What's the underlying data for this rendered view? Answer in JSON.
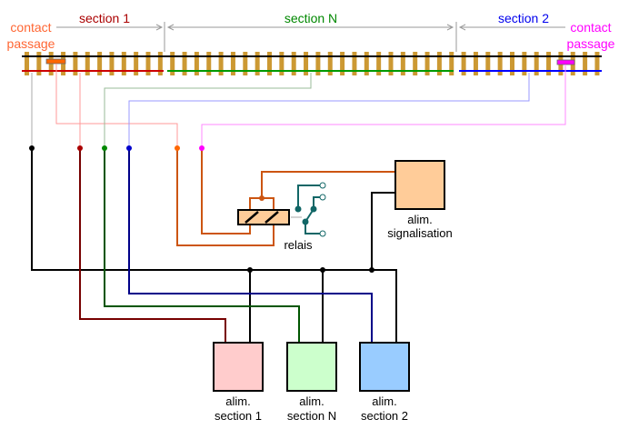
{
  "sections": {
    "section1": {
      "label": "section 1",
      "color": "#cc0000"
    },
    "sectionN": {
      "label": "section N",
      "color": "#008800"
    },
    "section2": {
      "label": "section 2",
      "color": "#0000ee"
    }
  },
  "contacts": {
    "left": {
      "line1": "contact",
      "line2": "passage",
      "color": "#ff6600"
    },
    "right": {
      "line1": "contact",
      "line2": "passage",
      "color": "#ff00ff"
    }
  },
  "relay": {
    "label": "relais"
  },
  "boxes": {
    "signalisation": {
      "line1": "alim.",
      "line2": "signalisation",
      "color": "#ffcc99"
    },
    "section1": {
      "line1": "alim.",
      "line2": "section 1",
      "color": "#ffcccc"
    },
    "sectionN": {
      "line1": "alim.",
      "line2": "section N",
      "color": "#ccffcc"
    },
    "section2": {
      "line1": "alim.",
      "line2": "section 2",
      "color": "#99ccff"
    }
  }
}
